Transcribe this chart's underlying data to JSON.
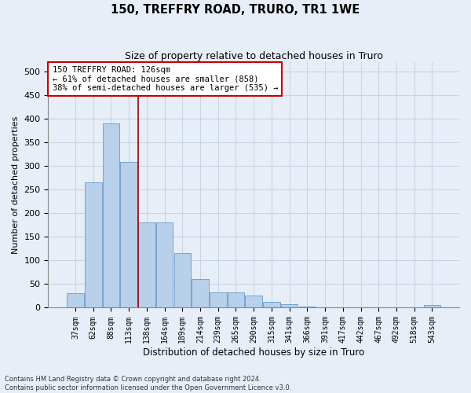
{
  "title": "150, TREFFRY ROAD, TRURO, TR1 1WE",
  "subtitle": "Size of property relative to detached houses in Truro",
  "xlabel": "Distribution of detached houses by size in Truro",
  "ylabel": "Number of detached properties",
  "footer_line1": "Contains HM Land Registry data © Crown copyright and database right 2024.",
  "footer_line2": "Contains public sector information licensed under the Open Government Licence v3.0.",
  "categories": [
    "37sqm",
    "62sqm",
    "88sqm",
    "113sqm",
    "138sqm",
    "164sqm",
    "189sqm",
    "214sqm",
    "239sqm",
    "265sqm",
    "290sqm",
    "315sqm",
    "341sqm",
    "366sqm",
    "391sqm",
    "417sqm",
    "442sqm",
    "467sqm",
    "492sqm",
    "518sqm",
    "543sqm"
  ],
  "values": [
    30,
    265,
    390,
    308,
    180,
    180,
    115,
    60,
    32,
    32,
    25,
    13,
    7,
    2,
    1,
    1,
    1,
    1,
    1,
    1,
    5
  ],
  "bar_color": "#b8d0ea",
  "bar_edge_color": "#6699cc",
  "annotation_title": "150 TREFFRY ROAD: 126sqm",
  "annotation_line1": "← 61% of detached houses are smaller (858)",
  "annotation_line2": "38% of semi-detached houses are larger (535) →",
  "annotation_box_color": "#ffffff",
  "annotation_box_edge": "#cc0000",
  "vline_color": "#990000",
  "ylim": [
    0,
    520
  ],
  "yticks": [
    0,
    50,
    100,
    150,
    200,
    250,
    300,
    350,
    400,
    450,
    500
  ],
  "grid_color": "#c8d4e4",
  "bg_color": "#e8eef8"
}
